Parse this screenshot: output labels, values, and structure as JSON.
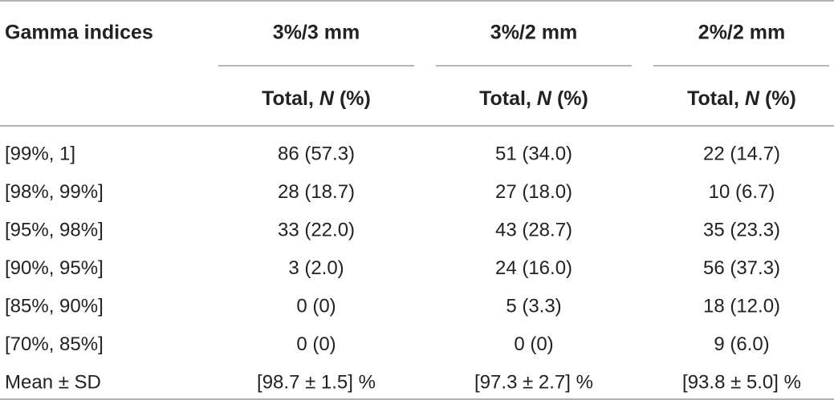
{
  "table": {
    "header": [
      "Gamma indices",
      "3%/3 mm",
      "3%/2 mm",
      "2%/2 mm"
    ],
    "subheader": {
      "prefix": "Total,",
      "italic": "N",
      "suffix": "(%)"
    },
    "rows": [
      [
        "[99%, 1]",
        "86 (57.3)",
        "51 (34.0)",
        "22 (14.7)"
      ],
      [
        "[98%, 99%]",
        "28 (18.7)",
        "27 (18.0)",
        "10 (6.7)"
      ],
      [
        "[95%, 98%]",
        "33 (22.0)",
        "43 (28.7)",
        "35 (23.3)"
      ],
      [
        "[90%, 95%]",
        "3 (2.0)",
        "24 (16.0)",
        "56 (37.3)"
      ],
      [
        "[85%, 90%]",
        "0 (0)",
        "5 (3.3)",
        "18 (12.0)"
      ],
      [
        "[70%, 85%]",
        "0 (0)",
        "0 (0)",
        "9 (6.0)"
      ],
      [
        "Mean ± SD",
        "[98.7 ± 1.5] %",
        "[97.3 ± 2.7] %",
        "[93.8 ± 5.0] %"
      ]
    ]
  }
}
